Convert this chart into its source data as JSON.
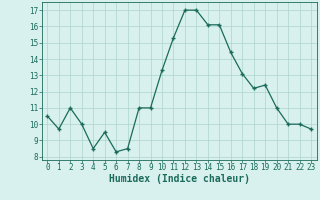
{
  "x": [
    0,
    1,
    2,
    3,
    4,
    5,
    6,
    7,
    8,
    9,
    10,
    11,
    12,
    13,
    14,
    15,
    16,
    17,
    18,
    19,
    20,
    21,
    22,
    23
  ],
  "y": [
    10.5,
    9.7,
    11.0,
    10.0,
    8.5,
    9.5,
    8.3,
    8.5,
    11.0,
    11.0,
    13.3,
    15.3,
    17.0,
    17.0,
    16.1,
    16.1,
    14.4,
    13.1,
    12.2,
    12.4,
    11.0,
    10.0,
    10.0,
    9.7
  ],
  "xlabel": "Humidex (Indice chaleur)",
  "ylim": [
    7.8,
    17.5
  ],
  "xlim": [
    -0.5,
    23.5
  ],
  "yticks": [
    8,
    9,
    10,
    11,
    12,
    13,
    14,
    15,
    16,
    17
  ],
  "xticks": [
    0,
    1,
    2,
    3,
    4,
    5,
    6,
    7,
    8,
    9,
    10,
    11,
    12,
    13,
    14,
    15,
    16,
    17,
    18,
    19,
    20,
    21,
    22,
    23
  ],
  "line_color": "#1a6b5a",
  "marker_color": "#1a6b5a",
  "bg_color": "#d8f0ee",
  "grid_color": "#aed4ce",
  "tick_fontsize": 5.5,
  "label_fontsize": 7.0
}
